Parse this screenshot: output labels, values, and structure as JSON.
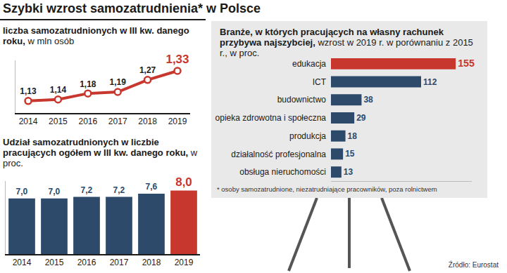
{
  "title": "Szybki wzrost samozatrudnienia* w Polsce",
  "footnote": "* osoby samozatrudnione, niezatrudniające pracowników, poza rolnictwem",
  "source": "Źródło: Eurostat",
  "chart_data": [
    {
      "type": "line",
      "title": "liczba samozatrudnionych w III kw. danego roku,",
      "subtitle": "w mln osób",
      "categories": [
        "2014",
        "2015",
        "2016",
        "2017",
        "2018",
        "2019"
      ],
      "values": [
        1.13,
        1.14,
        1.18,
        1.19,
        1.27,
        1.33
      ],
      "value_labels": [
        "1,13",
        "1,14",
        "1,18",
        "1,19",
        "1,27",
        "1,33"
      ],
      "color": "#c8372d",
      "colors": [
        "#1a1a1a",
        "#1a1a1a",
        "#1a1a1a",
        "#1a1a1a",
        "#1a1a1a",
        "#c8372d"
      ],
      "marker": "circle",
      "data_labels": true,
      "ylim": [
        1.05,
        1.4
      ],
      "yticks": [],
      "tick_labels": "x",
      "grid": false
    },
    {
      "type": "bar",
      "title": "Udział samozatrudnionych w liczbie pracujących ogółem w III kw. danego roku,",
      "subtitle": "w proc.",
      "categories": [
        "2014",
        "2015",
        "2016",
        "2017",
        "2018",
        "2019"
      ],
      "values": [
        7.0,
        7.0,
        7.2,
        7.2,
        7.6,
        8.0
      ],
      "value_labels": [
        "7,0",
        "7,0",
        "7,2",
        "7,2",
        "7,6",
        "8,0"
      ],
      "colors": [
        "#2d4a6b",
        "#2d4a6b",
        "#2d4a6b",
        "#2d4a6b",
        "#2d4a6b",
        "#c8372d"
      ],
      "data_labels": true,
      "ylim": [
        0,
        9.2
      ],
      "yticks": [],
      "tick_labels": "x",
      "grid": false
    },
    {
      "type": "bar",
      "orientation": "horizontal",
      "title": "Branże, w których pracujących na własny rachunek przybywa najszybciej,",
      "subtitle": "wzrost w 2019 r. w porównaniu z 2015 r., w proc.",
      "categories": [
        "edukacja",
        "ICT",
        "budownictwo",
        "opieka zdrowotna i społeczna",
        "produkcja",
        "działalność profesjonalna",
        "obsługa nieruchomości"
      ],
      "values": [
        155,
        112,
        38,
        29,
        18,
        15,
        13
      ],
      "colors": [
        "#c8372d",
        "#2d4a6b",
        "#2d4a6b",
        "#2d4a6b",
        "#2d4a6b",
        "#2d4a6b",
        "#2d4a6b"
      ],
      "data_labels": true,
      "xlim": [
        0,
        175
      ],
      "xticks": [],
      "tick_labels": "y",
      "grid": false
    }
  ]
}
